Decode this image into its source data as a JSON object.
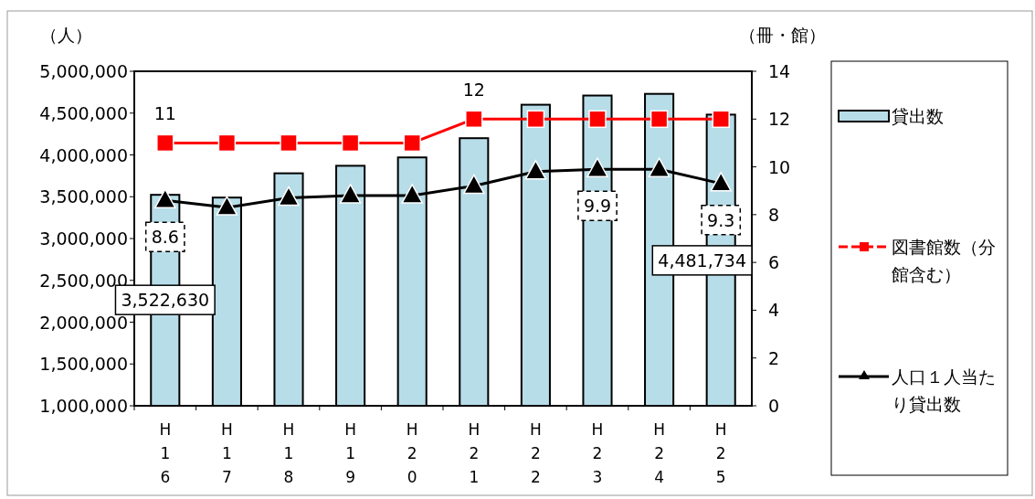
{
  "chart_data": {
    "type": "bar",
    "ylabel": "（人）",
    "y2label": "（冊・館）",
    "categories": [
      "H16",
      "H17",
      "H18",
      "H19",
      "H20",
      "H21",
      "H22",
      "H23",
      "H24",
      "H25"
    ],
    "ylim": [
      1000000,
      5000000
    ],
    "yticks": [
      {
        "value": 1000000,
        "label": "1,000,000"
      },
      {
        "value": 1500000,
        "label": "1,500,000"
      },
      {
        "value": 2000000,
        "label": "2,000,000"
      },
      {
        "value": 2500000,
        "label": "2,500,000"
      },
      {
        "value": 3000000,
        "label": "3,000,000"
      },
      {
        "value": 3500000,
        "label": "3,500,000"
      },
      {
        "value": 4000000,
        "label": "4,000,000"
      },
      {
        "value": 4500000,
        "label": "4,500,000"
      },
      {
        "value": 5000000,
        "label": "5,000,000"
      }
    ],
    "y2lim": [
      0,
      14
    ],
    "y2ticks": [
      0,
      2,
      4,
      6,
      8,
      10,
      12,
      14
    ],
    "legend": "right",
    "grid": false,
    "series": [
      {
        "name": "貸出数",
        "color": "#b7dde8",
        "values": [
          3522630,
          3490000,
          3780000,
          3870000,
          3970000,
          4200000,
          4600000,
          4710000,
          4730000,
          4481734
        ],
        "value_labels": [
          "3,522,630",
          null,
          null,
          null,
          null,
          null,
          null,
          null,
          null,
          "4,481,734"
        ]
      },
      {
        "name": "図書館数（分館含む）",
        "type": "line",
        "axis": "y2",
        "marker": "square",
        "color": "#ff0000",
        "values": [
          11,
          11,
          11,
          11,
          11,
          12,
          12,
          12,
          12,
          12
        ],
        "value_labels": [
          "11",
          null,
          null,
          null,
          null,
          "12",
          null,
          null,
          null,
          null
        ]
      },
      {
        "name": "人口１人当たり貸出数",
        "type": "line",
        "axis": "y2",
        "marker": "triangle",
        "color": "#000000",
        "values": [
          8.6,
          8.3,
          8.7,
          8.8,
          8.8,
          9.2,
          9.8,
          9.9,
          9.9,
          9.3
        ],
        "value_labels": [
          "8.6",
          null,
          null,
          null,
          null,
          null,
          null,
          "9.9",
          null,
          "9.3"
        ]
      }
    ]
  }
}
